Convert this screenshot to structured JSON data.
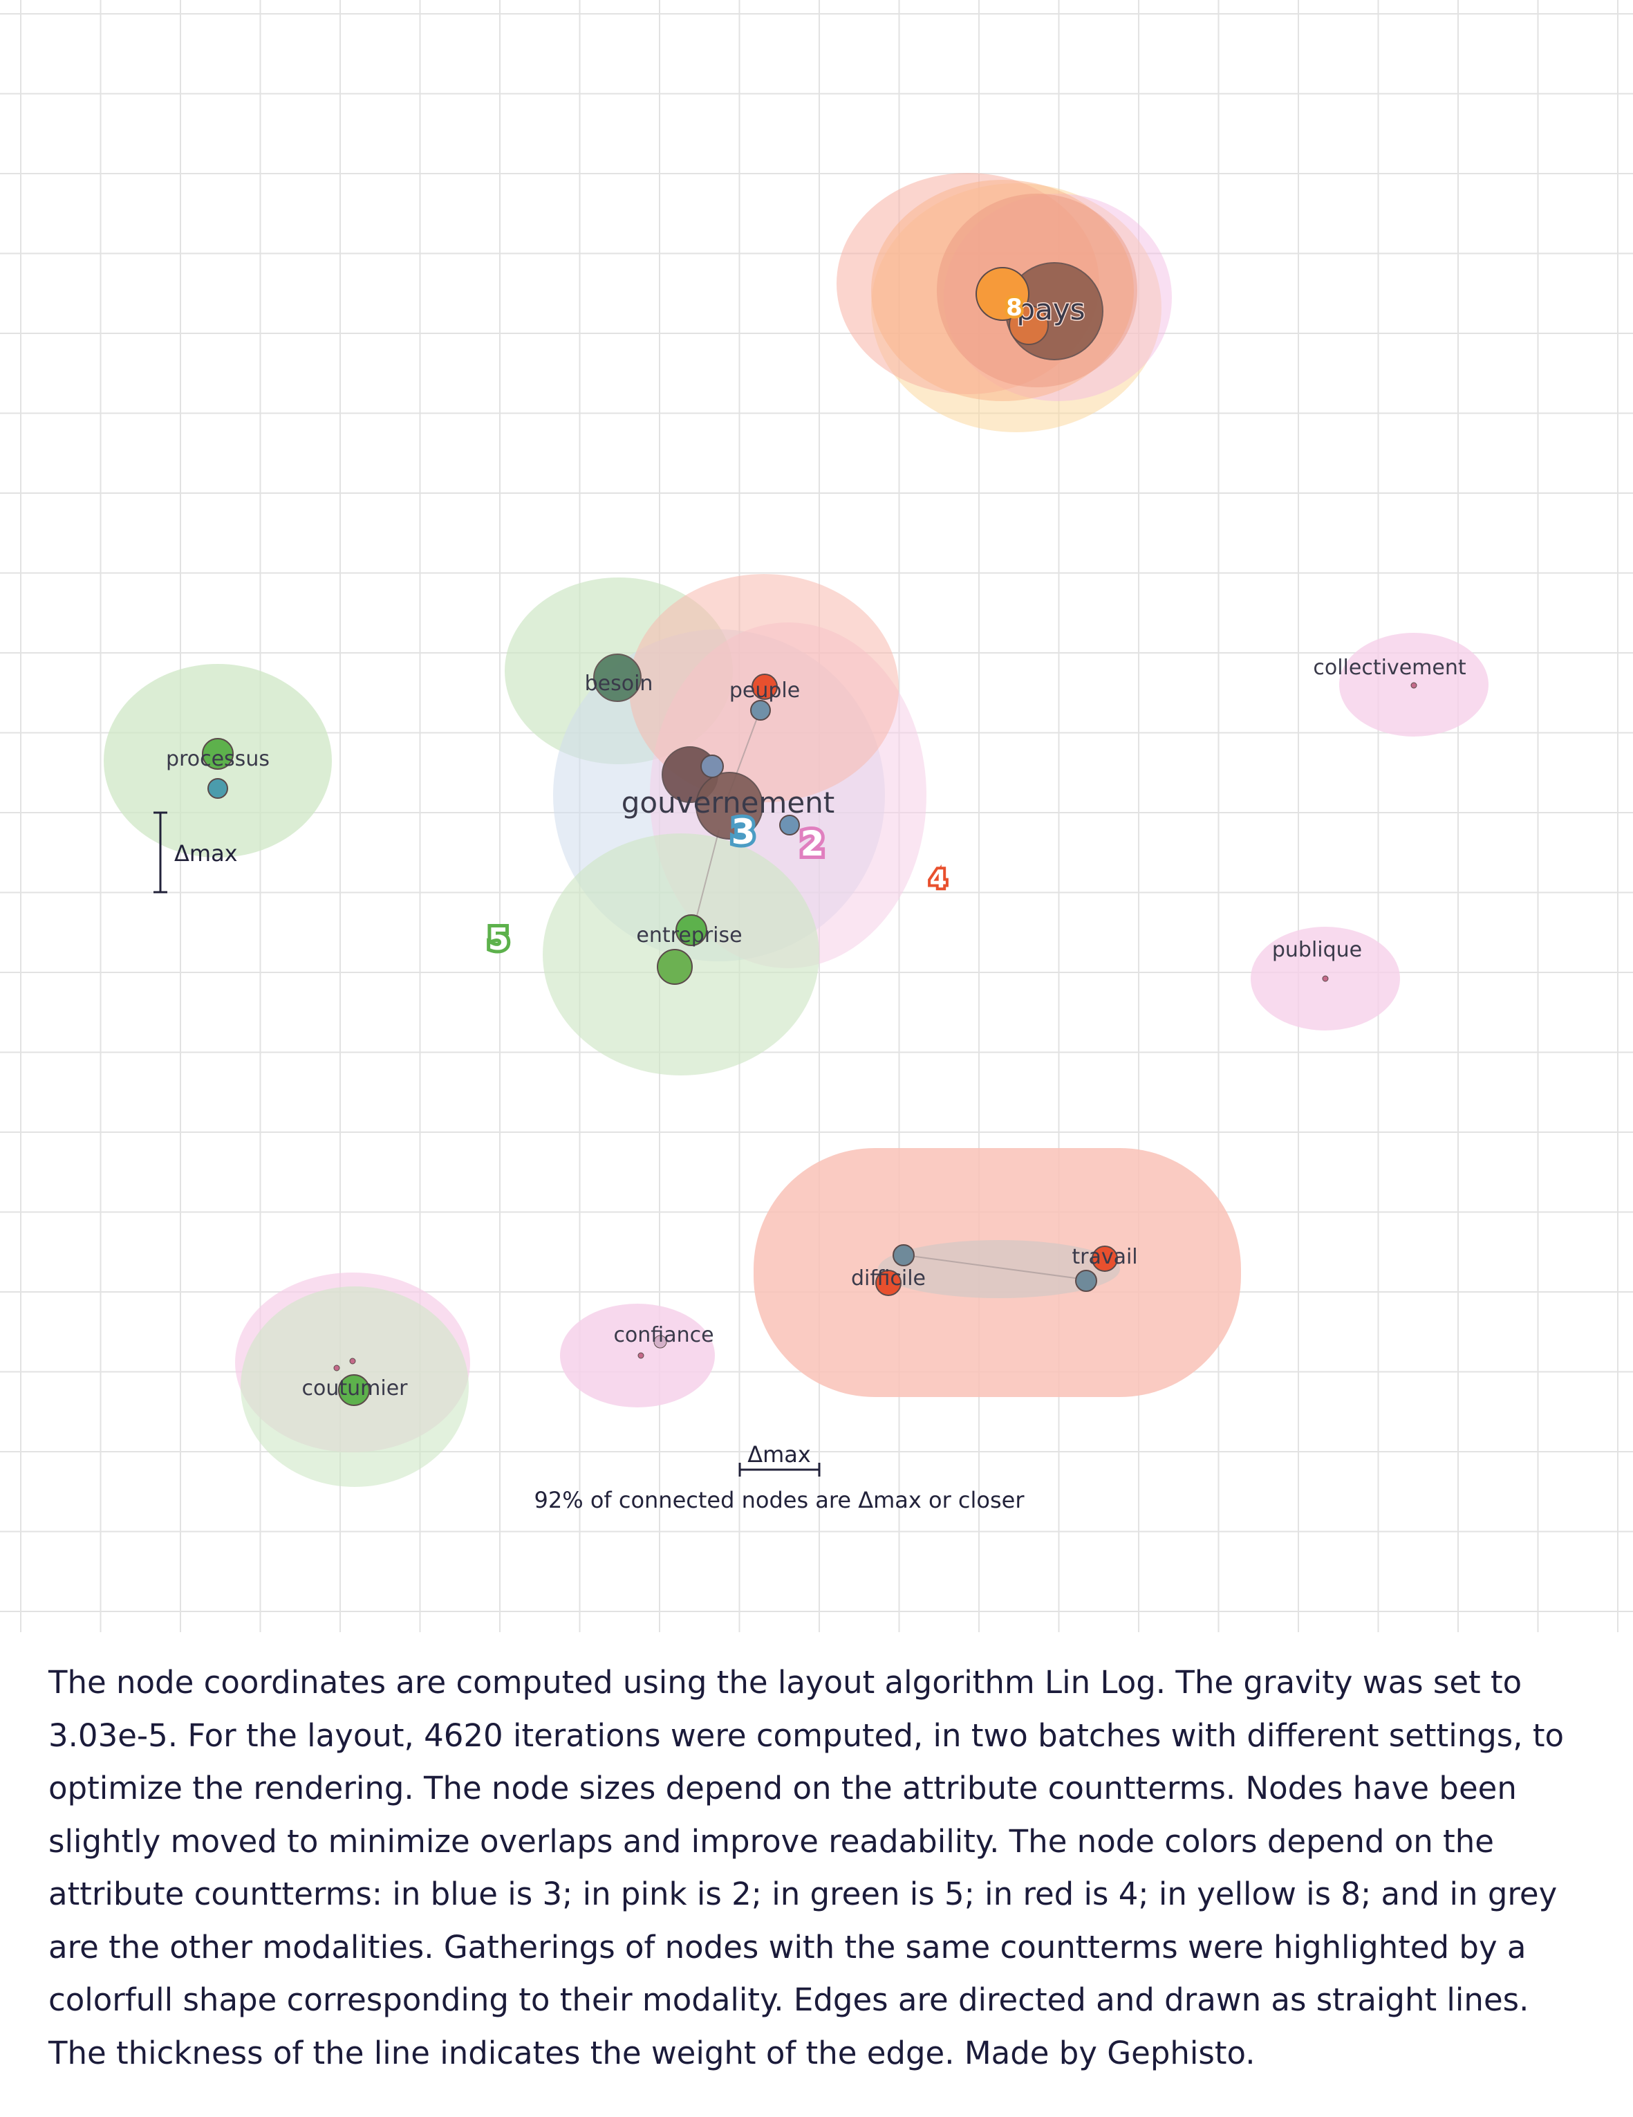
{
  "graph": {
    "nodes": [
      {
        "id": "pays",
        "label": "pays"
      },
      {
        "id": "gouvernement",
        "label": "gouvernement"
      },
      {
        "id": "besoin",
        "label": "besoin"
      },
      {
        "id": "peuple",
        "label": "peuple"
      },
      {
        "id": "processus",
        "label": "processus"
      },
      {
        "id": "entreprise",
        "label": "entreprise"
      },
      {
        "id": "collectivement",
        "label": "collectivement"
      },
      {
        "id": "publique",
        "label": "publique"
      },
      {
        "id": "difficile",
        "label": "difficile"
      },
      {
        "id": "travail",
        "label": "travail"
      },
      {
        "id": "confiance",
        "label": "confiance"
      },
      {
        "id": "coutumier",
        "label": "coutumier"
      }
    ],
    "cluster_markers": [
      {
        "label": "8",
        "modality": "yellow"
      },
      {
        "label": "3",
        "modality": "blue"
      },
      {
        "label": "2",
        "modality": "pink"
      },
      {
        "label": "4",
        "modality": "red"
      },
      {
        "label": "5",
        "modality": "green"
      }
    ],
    "scale": {
      "vertical_label": "Δmax",
      "horizontal_label": "Δmax",
      "note": "92% of connected nodes are Δmax or closer"
    },
    "colors": {
      "blue": "#4b9cc4",
      "pink": "#e07fbf",
      "green": "#5db14c",
      "red": "#e8502e",
      "yellow": "#f3a12d",
      "grey": "#8a6a60"
    }
  },
  "caption": "The node coordinates are computed using the layout algorithm Lin Log. The gravity was set to 3.03e-5. For the layout, 4620 iterations were computed, in two batches with different settings, to optimize the rendering. The node sizes depend on the attribute countterms. Nodes have been slightly moved to minimize overlaps and improve readability. The node colors depend on the attribute countterms: in blue is 3; in pink is 2; in green is 5; in red is 4; in yellow is 8; and in grey are the other modalities. Gatherings of nodes with the same countterms were highlighted by a colorfull shape corresponding to their modality. Edges are directed and drawn as straight lines. The thickness of the line indicates the weight of the edge.  Made by Gephisto."
}
